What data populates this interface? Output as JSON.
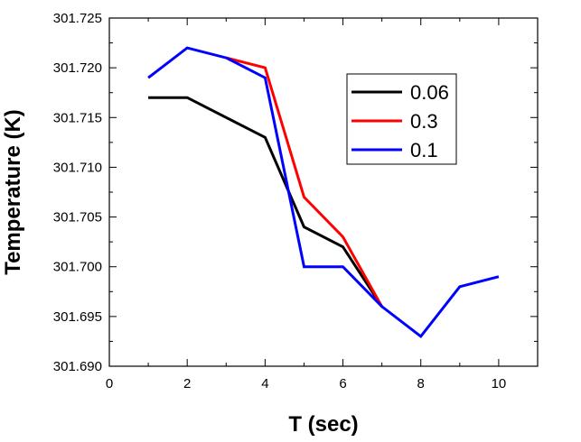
{
  "chart_data": {
    "type": "line",
    "title": "",
    "xlabel": "T (sec)",
    "ylabel": "Temperature (K)",
    "xlim": [
      0,
      11
    ],
    "ylim": [
      301.69,
      301.725
    ],
    "x_ticks": [
      0,
      2,
      4,
      6,
      8,
      10
    ],
    "y_ticks": [
      301.69,
      301.695,
      301.7,
      301.705,
      301.71,
      301.715,
      301.72,
      301.725
    ],
    "y_tick_labels": [
      "301.690",
      "301.695",
      "301.700",
      "301.705",
      "301.710",
      "301.715",
      "301.720",
      "301.725"
    ],
    "grid": false,
    "legend_position": "top-right",
    "series": [
      {
        "name": "0.06",
        "color": "#000000",
        "x": [
          1,
          2,
          3,
          4,
          5,
          6,
          7
        ],
        "values": [
          301.717,
          301.717,
          301.715,
          301.713,
          301.704,
          301.702,
          301.696
        ]
      },
      {
        "name": "0.3",
        "color": "#ff0000",
        "x": [
          3,
          4,
          5,
          6,
          7
        ],
        "values": [
          301.721,
          301.72,
          301.707,
          301.703,
          301.696
        ]
      },
      {
        "name": "0.1",
        "color": "#0000ff",
        "x": [
          1,
          2,
          3,
          4,
          5,
          6,
          7,
          8,
          9,
          10
        ],
        "values": [
          301.719,
          301.722,
          301.721,
          301.719,
          301.7,
          301.7,
          301.696,
          301.693,
          301.698,
          301.699
        ]
      }
    ]
  }
}
